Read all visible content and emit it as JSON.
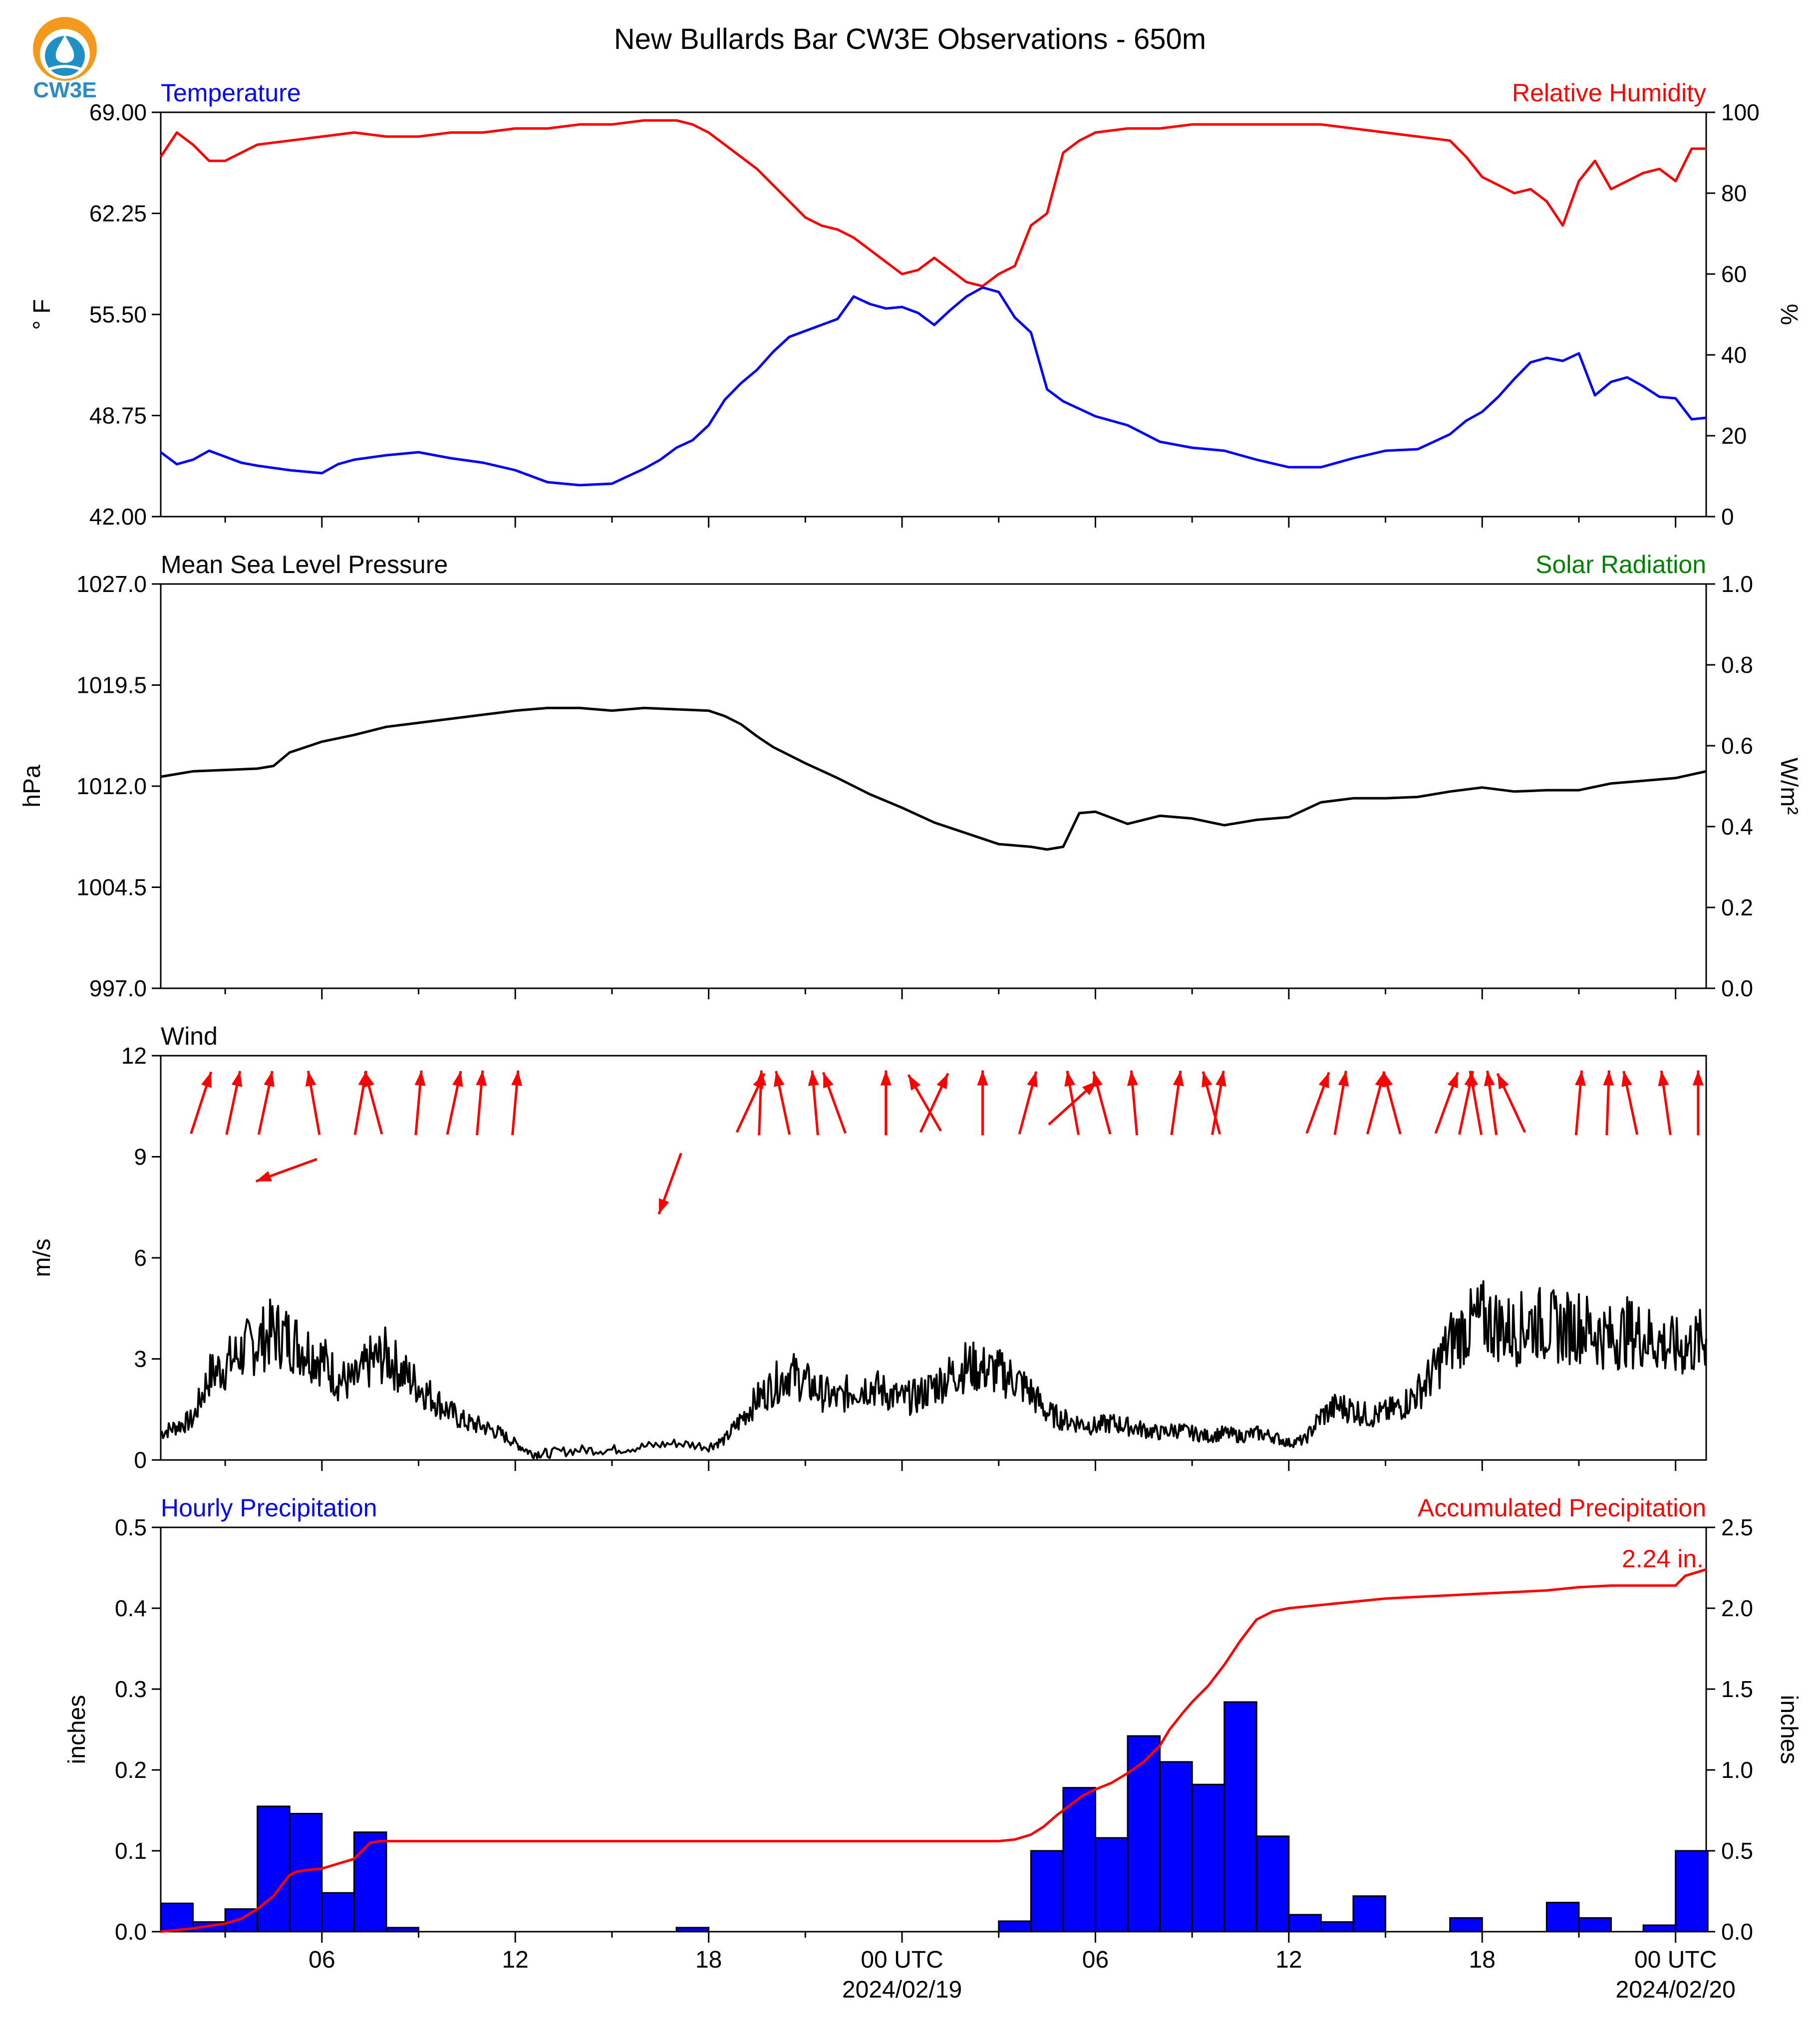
{
  "figure": {
    "title": "New Bullards Bar CW3E Observations - 650m",
    "logo_text": "CW3E",
    "colors": {
      "temp": "#0000ff",
      "rh": "#ff0000",
      "pressure": "#000000",
      "solar": "#008000",
      "wind": "#000000",
      "arrow": "#ff0000",
      "bar": "#0000ff",
      "accum": "#ff0000"
    },
    "x_ticks": [
      {
        "h": 6,
        "label": "06"
      },
      {
        "h": 12,
        "label": "12"
      },
      {
        "h": 18,
        "label": "18"
      },
      {
        "h": 24,
        "label": "00 UTC",
        "date": "2024/02/19"
      },
      {
        "h": 30,
        "label": "06"
      },
      {
        "h": 36,
        "label": "12"
      },
      {
        "h": 42,
        "label": "18"
      },
      {
        "h": 48,
        "label": "00 UTC",
        "date": "2024/02/20"
      }
    ],
    "x_range_hours": [
      1,
      48.95
    ]
  },
  "chart_data": [
    {
      "type": "line",
      "title_left": "Temperature",
      "title_right": "Relative Humidity",
      "ylabel_left": "° F",
      "ylabel_right": "%",
      "ylim_left": [
        42.0,
        69.0
      ],
      "yticks_left": [
        "42.00",
        "48.75",
        "55.50",
        "62.25",
        "69.00"
      ],
      "ylim_right": [
        0,
        100
      ],
      "yticks_right": [
        "0",
        "20",
        "40",
        "60",
        "80",
        "100"
      ],
      "series": [
        {
          "name": "Temperature",
          "axis": "left",
          "x": [
            1,
            1.5,
            2,
            2.5,
            3,
            3.5,
            4,
            5,
            6,
            6.5,
            7,
            8,
            9,
            10,
            11,
            12,
            13,
            14,
            15,
            16,
            16.5,
            17,
            17.5,
            18,
            18.5,
            19,
            19.5,
            20,
            20.5,
            21,
            21.5,
            22,
            22.5,
            23,
            23.5,
            24,
            24.5,
            25,
            25.5,
            26,
            26.5,
            27,
            27.5,
            28,
            28.5,
            29,
            29.5,
            30,
            31,
            32,
            33,
            34,
            35,
            36,
            37,
            38,
            39,
            40,
            41,
            41.5,
            42,
            42.5,
            43,
            43.5,
            44,
            44.5,
            45,
            45.5,
            46,
            46.5,
            47,
            47.5,
            48,
            48.5,
            48.95
          ],
          "y": [
            46.3,
            45.5,
            45.8,
            46.4,
            46.0,
            45.6,
            45.4,
            45.1,
            44.9,
            45.5,
            45.8,
            46.1,
            46.3,
            45.9,
            45.6,
            45.1,
            44.3,
            44.1,
            44.2,
            45.2,
            45.8,
            46.6,
            47.1,
            48.1,
            49.8,
            50.9,
            51.8,
            53.0,
            54.0,
            54.4,
            54.8,
            55.2,
            56.7,
            56.2,
            55.9,
            56.0,
            55.6,
            54.8,
            55.8,
            56.7,
            57.3,
            57.0,
            55.3,
            54.3,
            50.5,
            49.7,
            49.2,
            48.7,
            48.1,
            47.0,
            46.6,
            46.4,
            45.8,
            45.3,
            45.3,
            45.9,
            46.4,
            46.5,
            47.5,
            48.4,
            49.0,
            50.0,
            51.2,
            52.3,
            52.6,
            52.4,
            52.9,
            50.1,
            51.0,
            51.3,
            50.7,
            50.0,
            49.9,
            48.5,
            48.6
          ]
        },
        {
          "name": "Relative Humidity",
          "axis": "right",
          "x": [
            1,
            1.5,
            2,
            2.5,
            3,
            3.5,
            4,
            5,
            6,
            7,
            8,
            9,
            10,
            11,
            12,
            13,
            14,
            15,
            16,
            17,
            17.5,
            18,
            18.5,
            19,
            19.5,
            20,
            20.5,
            21,
            21.5,
            22,
            22.5,
            23,
            23.5,
            24,
            24.5,
            25,
            25.5,
            26,
            26.5,
            27,
            27.5,
            28,
            28.5,
            29,
            29.5,
            30,
            31,
            32,
            33,
            34,
            35,
            36,
            37,
            38,
            39,
            40,
            41,
            41.5,
            42,
            42.5,
            43,
            43.5,
            44,
            44.5,
            45,
            45.5,
            46,
            46.5,
            47,
            47.5,
            48,
            48.5,
            48.95
          ],
          "y": [
            89,
            95,
            92,
            88,
            88,
            90,
            92,
            93,
            94,
            95,
            94,
            94,
            95,
            95,
            96,
            96,
            97,
            97,
            98,
            98,
            97,
            95,
            92,
            89,
            86,
            82,
            78,
            74,
            72,
            71,
            69,
            66,
            63,
            60,
            61,
            64,
            61,
            58,
            57,
            60,
            62,
            72,
            75,
            90,
            93,
            95,
            96,
            96,
            97,
            97,
            97,
            97,
            97,
            96,
            95,
            94,
            93,
            89,
            84,
            82,
            80,
            81,
            78,
            72,
            83,
            88,
            81,
            83,
            85,
            86,
            83,
            91,
            91
          ]
        }
      ]
    },
    {
      "type": "line",
      "title_left": "Mean Sea Level Pressure",
      "title_right": "Solar Radiation",
      "ylabel_left": "hPa",
      "ylabel_right": "W/m²",
      "ylim_left": [
        997.0,
        1027.0
      ],
      "yticks_left": [
        "997.0",
        "1004.5",
        "1012.0",
        "1019.5",
        "1027.0"
      ],
      "ylim_right": [
        0.0,
        1.0
      ],
      "yticks_right": [
        "0.0",
        "0.2",
        "0.4",
        "0.6",
        "0.8",
        "1.0"
      ],
      "series": [
        {
          "name": "Mean Sea Level Pressure",
          "axis": "left",
          "x": [
            1,
            2,
            3,
            4,
            4.5,
            5,
            5.5,
            6,
            7,
            8,
            9,
            10,
            11,
            12,
            13,
            14,
            15,
            16,
            17,
            18,
            18.5,
            19,
            19.5,
            20,
            21,
            22,
            23,
            24,
            25,
            26,
            27,
            28,
            28.5,
            29,
            29.5,
            30,
            31,
            32,
            33,
            34,
            35,
            36,
            37,
            38,
            39,
            40,
            41,
            42,
            43,
            44,
            45,
            46,
            47,
            48,
            48.95
          ],
          "y": [
            1012.7,
            1013.1,
            1013.2,
            1013.3,
            1013.5,
            1014.5,
            1014.9,
            1015.3,
            1015.8,
            1016.4,
            1016.7,
            1017.0,
            1017.3,
            1017.6,
            1017.8,
            1017.8,
            1017.6,
            1017.8,
            1017.7,
            1017.6,
            1017.2,
            1016.6,
            1015.7,
            1014.9,
            1013.7,
            1012.6,
            1011.4,
            1010.4,
            1009.3,
            1008.5,
            1007.7,
            1007.5,
            1007.3,
            1007.5,
            1010.0,
            1010.1,
            1009.2,
            1009.8,
            1009.6,
            1009.1,
            1009.5,
            1009.7,
            1010.8,
            1011.1,
            1011.1,
            1011.2,
            1011.6,
            1011.9,
            1011.6,
            1011.7,
            1011.7,
            1012.2,
            1012.4,
            1012.6,
            1013.1
          ]
        }
      ]
    },
    {
      "type": "line",
      "title_left": "Wind",
      "ylabel_left": "m/s",
      "ylim_left": [
        0,
        12
      ],
      "yticks_left": [
        "0",
        "3",
        "6",
        "9",
        "12"
      ],
      "series": [
        {
          "name": "Wind",
          "x": [
            1,
            1.5,
            2,
            2.5,
            3,
            3.5,
            4,
            4.5,
            5,
            5.5,
            6,
            6.5,
            7,
            7.5,
            8,
            8.5,
            9,
            9.5,
            10,
            10.5,
            11,
            11.5,
            12,
            12.5,
            13,
            14,
            15,
            16,
            17,
            18,
            18.5,
            19,
            19.5,
            20,
            20.5,
            21,
            21.5,
            22,
            22.5,
            23,
            23.5,
            24,
            24.5,
            25,
            25.5,
            26,
            26.5,
            27,
            27.5,
            28,
            28.5,
            29,
            29.5,
            30,
            30.5,
            31,
            31.5,
            32,
            32.5,
            33,
            33.5,
            34,
            34.5,
            35,
            35.5,
            36,
            36.5,
            37,
            37.5,
            38,
            38.5,
            39,
            39.5,
            40,
            40.5,
            41,
            41.5,
            42,
            42.5,
            43,
            43.5,
            44,
            44.5,
            45,
            45.5,
            46,
            46.5,
            47,
            47.5,
            48,
            48.5,
            48.95
          ],
          "y": [
            0.8,
            1.0,
            1.2,
            2.5,
            2.8,
            3.2,
            3.5,
            3.8,
            3.6,
            3.3,
            3.0,
            2.4,
            2.3,
            2.9,
            3.1,
            2.6,
            2.2,
            1.8,
            1.4,
            1.1,
            1.0,
            0.8,
            0.5,
            0.2,
            0.2,
            0.3,
            0.3,
            0.4,
            0.5,
            0.4,
            0.6,
            1.2,
            1.8,
            2.2,
            2.6,
            2.3,
            2.0,
            1.8,
            2.1,
            2.2,
            2.0,
            1.8,
            1.9,
            2.2,
            2.5,
            2.8,
            2.7,
            2.6,
            2.4,
            2.0,
            1.4,
            1.2,
            1.1,
            1.0,
            1.1,
            1.0,
            0.9,
            0.8,
            0.9,
            0.8,
            0.7,
            0.8,
            0.7,
            0.8,
            0.7,
            0.5,
            0.6,
            1.3,
            1.6,
            1.5,
            1.3,
            1.4,
            1.6,
            2.0,
            2.6,
            3.5,
            3.9,
            4.2,
            4.0,
            3.8,
            4.1,
            4.0,
            3.9,
            4.0,
            3.8,
            3.6,
            3.8,
            3.7,
            3.5,
            3.3,
            3.4,
            3.6
          ]
        }
      ],
      "wind_arrows": [
        {
          "h": 2.25,
          "dir": 18,
          "y": 10.6
        },
        {
          "h": 3.25,
          "dir": 12,
          "y": 10.6
        },
        {
          "h": 4.25,
          "dir": 12,
          "y": 10.6
        },
        {
          "h": 4.9,
          "dir": 250,
          "y": 8.6
        },
        {
          "h": 5.75,
          "dir": 350,
          "y": 10.6
        },
        {
          "h": 7.2,
          "dir": 10,
          "y": 10.6
        },
        {
          "h": 7.6,
          "dir": 345,
          "y": 10.6
        },
        {
          "h": 9.0,
          "dir": 5,
          "y": 10.6
        },
        {
          "h": 10.1,
          "dir": 12,
          "y": 10.6
        },
        {
          "h": 10.9,
          "dir": 5,
          "y": 10.6
        },
        {
          "h": 12.0,
          "dir": 5,
          "y": 10.6
        },
        {
          "h": 16.8,
          "dir": 200,
          "y": 8.2
        },
        {
          "h": 19.3,
          "dir": 25,
          "y": 10.6
        },
        {
          "h": 19.6,
          "dir": 2,
          "y": 10.6
        },
        {
          "h": 20.3,
          "dir": 348,
          "y": 10.6
        },
        {
          "h": 21.3,
          "dir": 355,
          "y": 10.6
        },
        {
          "h": 21.9,
          "dir": 340,
          "y": 10.6
        },
        {
          "h": 23.5,
          "dir": 0,
          "y": 10.6
        },
        {
          "h": 24.7,
          "dir": 330,
          "y": 10.6
        },
        {
          "h": 25.0,
          "dir": 25,
          "y": 10.6
        },
        {
          "h": 26.5,
          "dir": 0,
          "y": 10.6
        },
        {
          "h": 27.9,
          "dir": 15,
          "y": 10.6
        },
        {
          "h": 29.3,
          "dir": 48,
          "y": 10.6
        },
        {
          "h": 29.3,
          "dir": 350,
          "y": 10.6
        },
        {
          "h": 30.2,
          "dir": 345,
          "y": 10.6
        },
        {
          "h": 31.2,
          "dir": 355,
          "y": 10.6
        },
        {
          "h": 32.5,
          "dir": 8,
          "y": 10.6
        },
        {
          "h": 33.6,
          "dir": 345,
          "y": 10.6
        },
        {
          "h": 33.8,
          "dir": 10,
          "y": 10.6
        },
        {
          "h": 36.9,
          "dir": 20,
          "y": 10.6
        },
        {
          "h": 37.6,
          "dir": 10,
          "y": 10.6
        },
        {
          "h": 38.7,
          "dir": 15,
          "y": 10.6
        },
        {
          "h": 39.2,
          "dir": 345,
          "y": 10.6
        },
        {
          "h": 40.9,
          "dir": 20,
          "y": 10.6
        },
        {
          "h": 41.5,
          "dir": 12,
          "y": 10.6
        },
        {
          "h": 41.8,
          "dir": 350,
          "y": 10.6
        },
        {
          "h": 42.3,
          "dir": 352,
          "y": 10.6
        },
        {
          "h": 42.9,
          "dir": 335,
          "y": 10.6
        },
        {
          "h": 45.0,
          "dir": 5,
          "y": 10.6
        },
        {
          "h": 45.9,
          "dir": 2,
          "y": 10.6
        },
        {
          "h": 46.6,
          "dir": 348,
          "y": 10.6
        },
        {
          "h": 47.7,
          "dir": 352,
          "y": 10.6
        },
        {
          "h": 48.7,
          "dir": 0,
          "y": 10.6
        }
      ]
    },
    {
      "type": "bar",
      "title_left": "Hourly Precipitation",
      "title_right": "Accumulated Precipitation",
      "ylabel_left": "inches",
      "ylabel_right": "inches",
      "ylim_left": [
        0.0,
        0.5
      ],
      "yticks_left": [
        "0.0",
        "0.1",
        "0.2",
        "0.3",
        "0.4",
        "0.5"
      ],
      "ylim_right": [
        0.0,
        2.5
      ],
      "yticks_right": [
        "0.0",
        "0.5",
        "1.0",
        "1.5",
        "2.0",
        "2.5"
      ],
      "annotation": "2.24 in.",
      "hourly": {
        "start_hour": [
          1,
          2,
          3,
          4,
          5,
          6,
          7,
          8,
          17,
          27,
          28,
          29,
          30,
          31,
          32,
          33,
          34,
          35,
          36,
          37,
          38,
          39,
          41,
          44,
          45,
          47,
          48
        ],
        "values": [
          0.035,
          0.012,
          0.028,
          0.155,
          0.146,
          0.048,
          0.123,
          0.005,
          0.005,
          0.013,
          0.1,
          0.178,
          0.116,
          0.242,
          0.21,
          0.182,
          0.284,
          0.118,
          0.021,
          0.012,
          0.044,
          0.0,
          0.017,
          0.036,
          0.017,
          0.008,
          0.1
        ]
      },
      "accumulated": {
        "x": [
          1,
          2,
          3,
          3.5,
          4,
          4.5,
          4.8,
          5,
          5.2,
          5.5,
          6,
          6.5,
          7,
          7.5,
          7.8,
          8,
          9,
          12,
          17,
          18,
          20,
          24,
          26,
          27,
          27.5,
          28,
          28.4,
          28.8,
          29.2,
          29.6,
          30,
          30.5,
          31,
          31.5,
          32,
          32.3,
          32.7,
          33,
          33.5,
          34,
          34.5,
          35,
          35.5,
          36,
          37,
          38,
          39,
          40,
          41,
          42,
          43,
          44,
          44.5,
          45,
          46,
          47,
          48,
          48.3,
          48.95
        ],
        "y": [
          0.0,
          0.02,
          0.05,
          0.08,
          0.14,
          0.22,
          0.3,
          0.35,
          0.37,
          0.38,
          0.39,
          0.42,
          0.45,
          0.55,
          0.56,
          0.56,
          0.56,
          0.56,
          0.56,
          0.56,
          0.56,
          0.56,
          0.56,
          0.56,
          0.57,
          0.6,
          0.65,
          0.72,
          0.78,
          0.84,
          0.88,
          0.92,
          0.98,
          1.05,
          1.15,
          1.25,
          1.35,
          1.42,
          1.52,
          1.65,
          1.8,
          1.93,
          1.98,
          2.0,
          2.02,
          2.04,
          2.06,
          2.07,
          2.08,
          2.09,
          2.1,
          2.11,
          2.12,
          2.13,
          2.14,
          2.14,
          2.14,
          2.2,
          2.24
        ]
      }
    }
  ]
}
